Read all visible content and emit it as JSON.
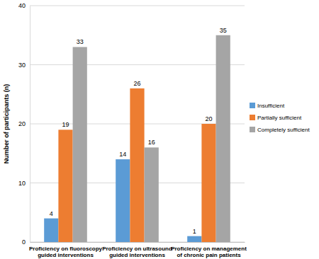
{
  "chart_data": {
    "type": "bar",
    "categories": [
      "Proficiency on fluoroscopy guided interventions",
      "Proficiency on ultrasound guided interventions",
      "Proficiency on management of chronic pain patients"
    ],
    "series": [
      {
        "name": "Insufficient",
        "color": "#5b9bd5",
        "values": [
          4,
          14,
          1
        ]
      },
      {
        "name": "Partially sufficient",
        "color": "#ed7d31",
        "values": [
          19,
          26,
          20
        ]
      },
      {
        "name": "Completely sufficient",
        "color": "#a5a5a5",
        "values": [
          33,
          16,
          35
        ]
      }
    ],
    "y_label": "Number of participants (n)",
    "ylim": [
      0,
      40
    ],
    "yticks": [
      0,
      10,
      20,
      30,
      40
    ],
    "grid": true,
    "data_labels": true,
    "legend": "right"
  }
}
